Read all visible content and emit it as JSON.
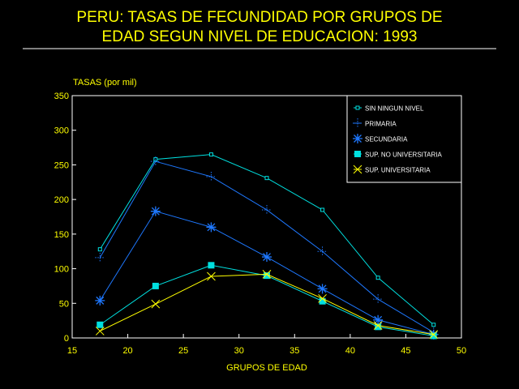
{
  "chart_data": {
    "type": "line",
    "title_lines": [
      "PERU: TASAS DE FECUNDIDAD POR GRUPOS DE",
      "EDAD SEGUN NIVEL DE EDUCACION: 1993"
    ],
    "xlabel": "GRUPOS DE EDAD",
    "ylabel": "TASAS (por mil)",
    "xlim": [
      15,
      50
    ],
    "ylim": [
      0,
      350
    ],
    "xticks": [
      15,
      20,
      25,
      30,
      35,
      40,
      45,
      50
    ],
    "yticks": [
      0,
      50,
      100,
      150,
      200,
      250,
      300,
      350
    ],
    "x": [
      17.5,
      22.5,
      27.5,
      32.5,
      37.5,
      42.5,
      47.5
    ],
    "legend_position": "top-right",
    "grid": false,
    "series": [
      {
        "name": "SIN NINGUN NIVEL",
        "color": "#00e0e0",
        "marker": "small-square",
        "values": [
          128,
          258,
          265,
          231,
          185,
          87,
          19
        ]
      },
      {
        "name": "PRIMARIA",
        "color": "#1e78ff",
        "marker": "plus",
        "values": [
          116,
          255,
          233,
          185,
          125,
          56,
          8
        ]
      },
      {
        "name": "SECUNDARIA",
        "color": "#1e78ff",
        "marker": "asterisk",
        "values": [
          54,
          183,
          160,
          117,
          71,
          26,
          5
        ]
      },
      {
        "name": "SUP. NO UNIVERSITARIA",
        "color": "#00e0e0",
        "marker": "filled-square",
        "values": [
          19,
          75,
          105,
          90,
          53,
          16,
          3
        ]
      },
      {
        "name": "SUP. UNIVERSITARIA",
        "color": "#ffff00",
        "marker": "x",
        "values": [
          10,
          49,
          89,
          92,
          57,
          18,
          5
        ]
      }
    ]
  },
  "colors": {
    "title": "#ffff00",
    "axis": "#ffffff",
    "tick_labels": "#ffff00"
  }
}
